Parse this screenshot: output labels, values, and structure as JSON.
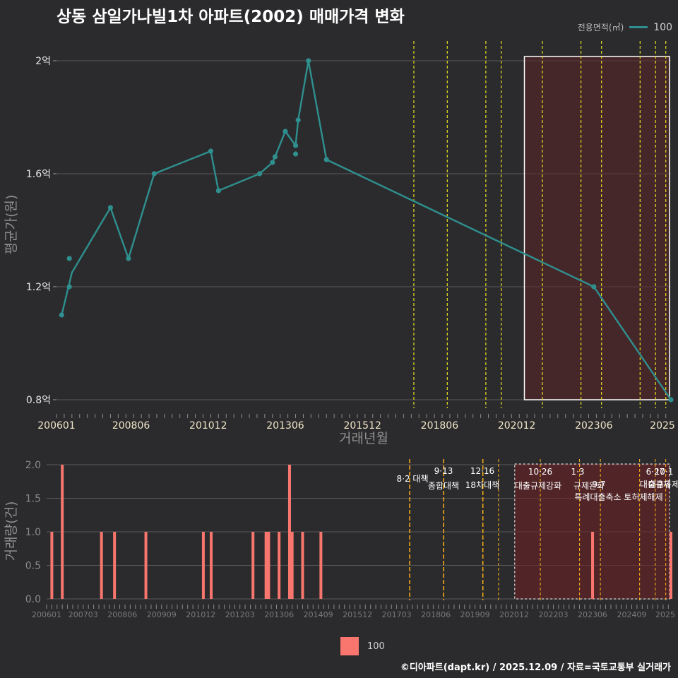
{
  "title": "상동 삼일가나빌1차 아파트(2002) 매매가격 변화",
  "legend_top": {
    "title": "전용면적(㎡)",
    "item": "100",
    "color": "#2f8f8e"
  },
  "legend_bottom": {
    "item": "100",
    "color": "#f8766d"
  },
  "footer": "©디아파트(dapt.kr) / 2025.12.09 / 자료=국토교통부 실거래가",
  "chart_data": [
    {
      "type": "line",
      "name": "price",
      "xlabel": "거래년월",
      "ylabel": "평균가(원)",
      "ylim": [
        0.77,
        2.07
      ],
      "y_ticks": [
        0.8,
        1.2,
        1.6,
        2.0
      ],
      "y_tick_labels": [
        "0.8억",
        "1.2억",
        "1.6억",
        "2억"
      ],
      "x_range": [
        "2006-01",
        "2025-12"
      ],
      "x_ticks": [
        "200601",
        "200806",
        "201012",
        "201306",
        "201512",
        "201806",
        "202012",
        "202306",
        "2025"
      ],
      "series": [
        {
          "name": "100",
          "color": "#2f8f8e",
          "points": [
            {
              "x": "2006-03",
              "y": 1.1
            },
            {
              "x": "2006-06",
              "y": 1.3
            },
            {
              "x": "2006-06",
              "y": 1.2
            },
            {
              "x": "2006-07",
              "y": 1.25
            },
            {
              "x": "2007-10",
              "y": 1.48
            },
            {
              "x": "2008-05",
              "y": 1.3
            },
            {
              "x": "2009-03",
              "y": 1.6
            },
            {
              "x": "2011-01",
              "y": 1.68
            },
            {
              "x": "2011-04",
              "y": 1.54
            },
            {
              "x": "2012-08",
              "y": 1.6
            },
            {
              "x": "2013-01",
              "y": 1.64
            },
            {
              "x": "2013-02",
              "y": 1.66
            },
            {
              "x": "2013-06",
              "y": 1.75
            },
            {
              "x": "2013-10",
              "y": 1.7
            },
            {
              "x": "2013-10",
              "y": 1.67
            },
            {
              "x": "2013-11",
              "y": 1.79
            },
            {
              "x": "2014-03",
              "y": 2.0
            },
            {
              "x": "2014-10",
              "y": 1.65
            },
            {
              "x": "2023-06",
              "y": 1.2
            },
            {
              "x": "2025-12",
              "y": 0.8
            }
          ]
        }
      ],
      "highlight_range": [
        "2021-03",
        "2025-12"
      ]
    },
    {
      "type": "bar",
      "name": "volume",
      "xlabel": "",
      "ylabel": "거래량(건)",
      "ylim": [
        0,
        2.0
      ],
      "y_ticks": [
        0.0,
        0.5,
        1.0,
        1.5,
        2.0
      ],
      "y_tick_labels": [
        "0.0",
        "0.5",
        "1.0",
        "1.5",
        "2.0"
      ],
      "x_ticks": [
        "200601",
        "200703",
        "200806",
        "200909",
        "201012",
        "201203",
        "201306",
        "201409",
        "201512",
        "201703",
        "201806",
        "201909",
        "202012",
        "202203",
        "202306",
        "202409",
        "2025"
      ],
      "series": [
        {
          "name": "100",
          "color": "#f8766d",
          "bars": [
            {
              "x": "2006-03",
              "y": 1
            },
            {
              "x": "2006-07",
              "y": 2
            },
            {
              "x": "2007-10",
              "y": 1
            },
            {
              "x": "2008-03",
              "y": 1
            },
            {
              "x": "2009-03",
              "y": 1
            },
            {
              "x": "2011-01",
              "y": 1
            },
            {
              "x": "2011-04",
              "y": 1
            },
            {
              "x": "2012-08",
              "y": 1
            },
            {
              "x": "2013-01",
              "y": 1
            },
            {
              "x": "2013-02",
              "y": 1
            },
            {
              "x": "2013-06",
              "y": 1
            },
            {
              "x": "2013-10",
              "y": 2
            },
            {
              "x": "2013-11",
              "y": 1
            },
            {
              "x": "2014-03",
              "y": 1
            },
            {
              "x": "2014-10",
              "y": 1
            },
            {
              "x": "2023-06",
              "y": 1
            },
            {
              "x": "2025-12",
              "y": 1
            }
          ]
        }
      ],
      "highlight_range": [
        "2021-01",
        "2025-12"
      ]
    }
  ],
  "policy_lines": [
    {
      "date": "2017-08",
      "label": "8·2 대책",
      "label2": ""
    },
    {
      "date": "2018-09",
      "label": "9·13",
      "label2": "종합대책"
    },
    {
      "date": "2019-12",
      "label": "12·16",
      "label2": "18차대책"
    },
    {
      "date": "2020-06",
      "label": "",
      "label2": ""
    },
    {
      "date": "2021-10",
      "label": "10·26",
      "label2": "대출규제강화"
    },
    {
      "date": "2023-01",
      "label": "1·3",
      "label2": "규제완화"
    },
    {
      "date": "2023-09",
      "label": "",
      "label2": "9·7"
    },
    {
      "date": "2024-12",
      "label": "6·27",
      "label2": "대출규제"
    },
    {
      "date": "2025-06",
      "label": "10·1",
      "label2": "대출규제"
    },
    {
      "date": "2025-10",
      "label": "",
      "label2": ""
    }
  ],
  "policy_extra_label": "특례대출축소 토허제해제"
}
